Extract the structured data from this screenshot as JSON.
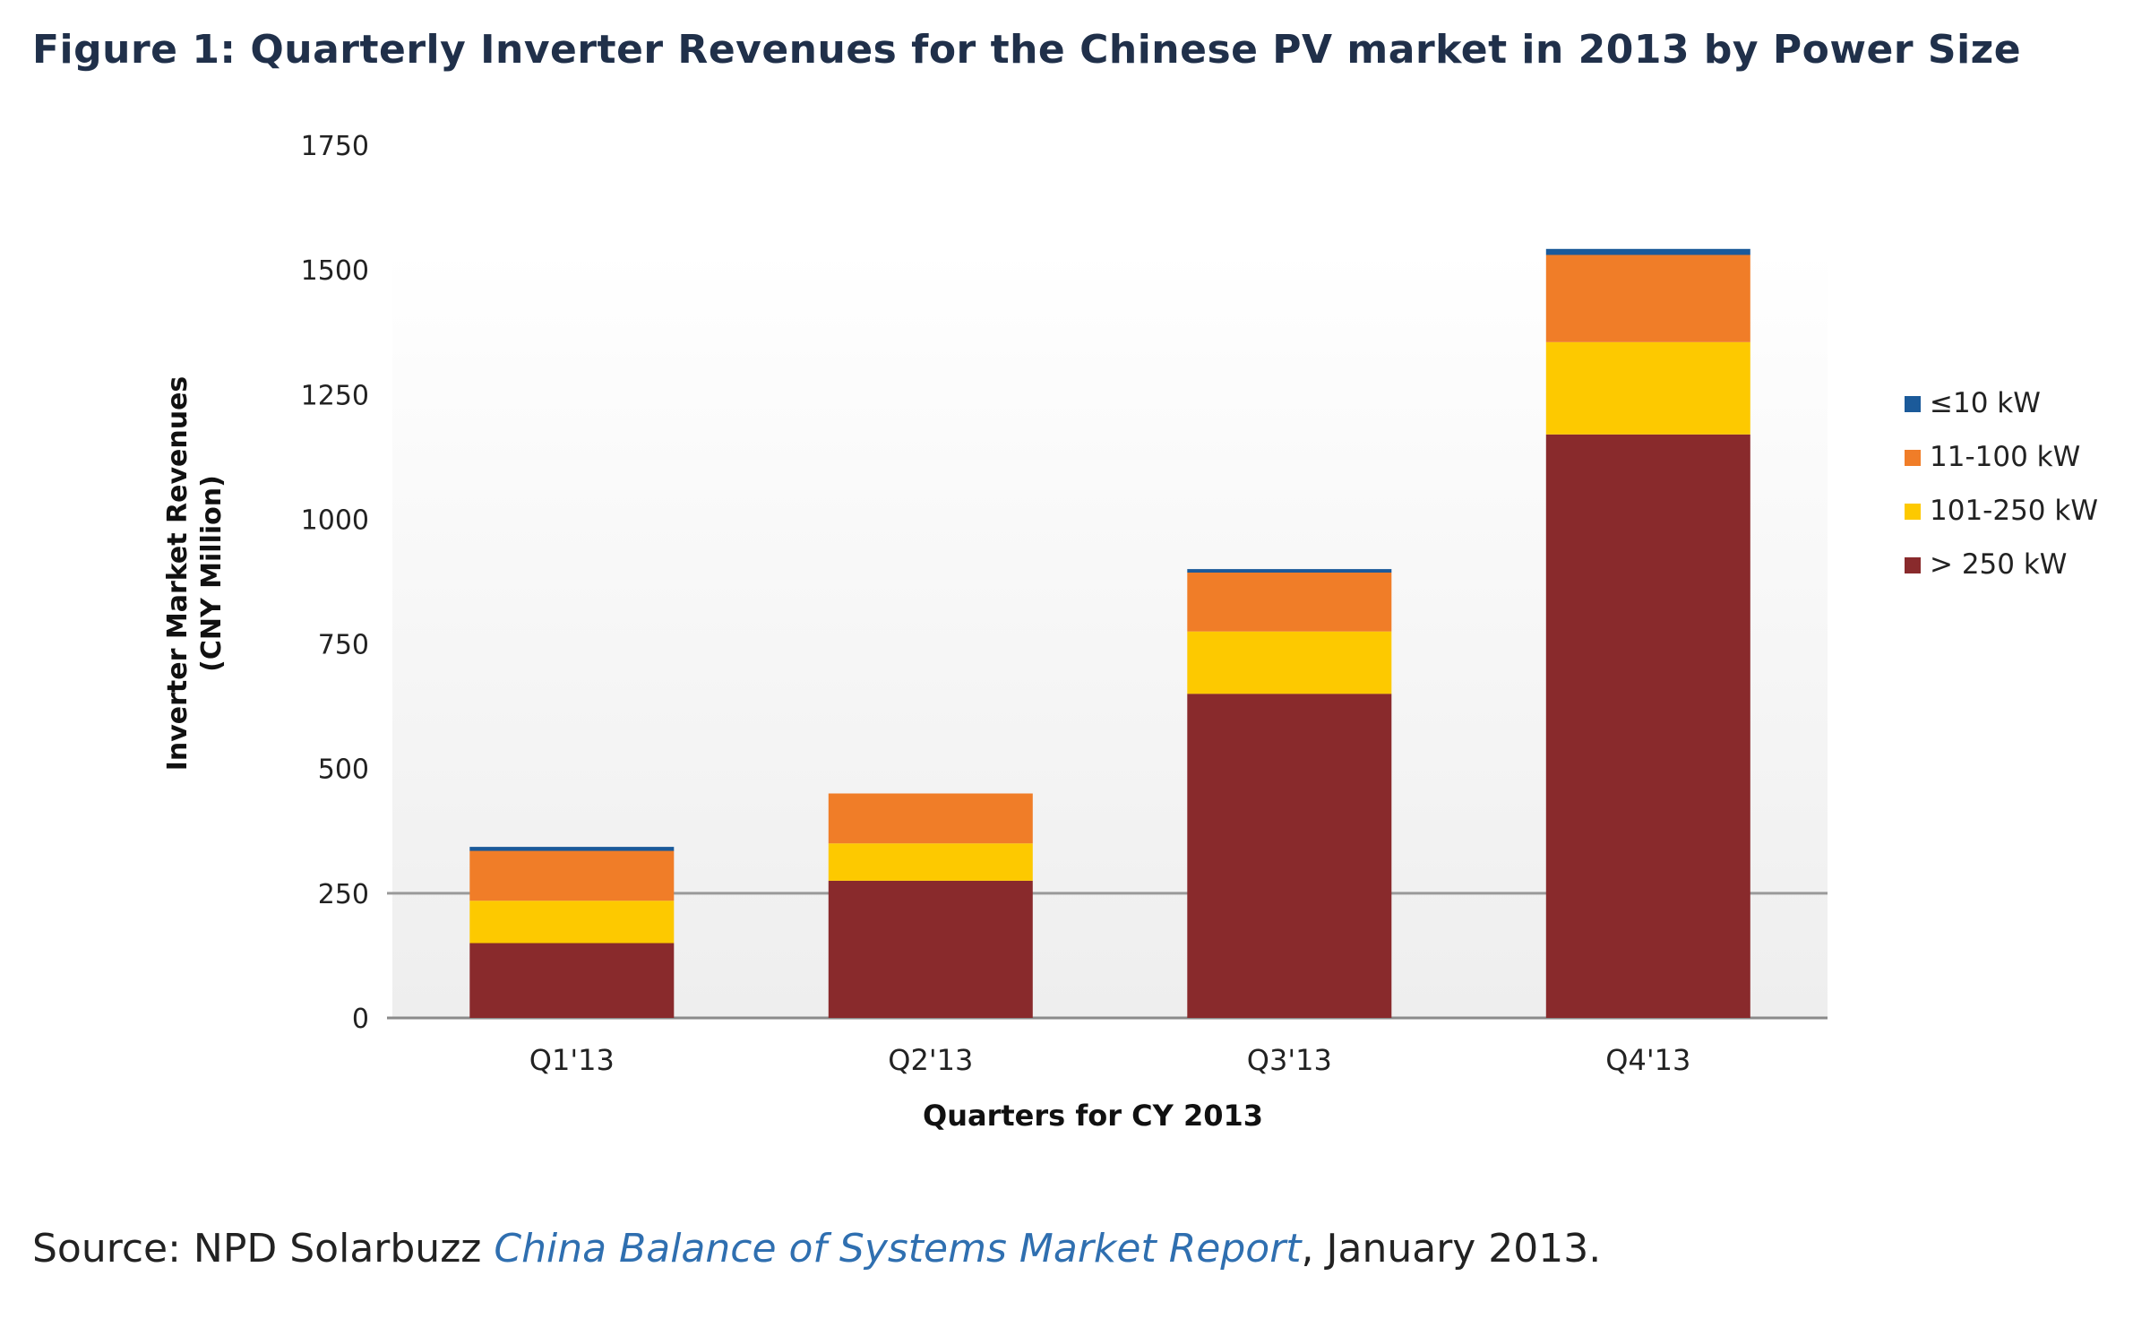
{
  "chart_data": {
    "type": "bar",
    "stacked": true,
    "title": "Figure 1: Quarterly Inverter Revenues for the Chinese PV market in 2013 by Power Size",
    "xlabel": "Quarters for CY 2013",
    "ylabel": "Inverter Market Revenues\n(CNY Million)",
    "ylim": [
      0,
      1750
    ],
    "yticks": [
      "0",
      "250",
      "500",
      "750",
      "1000",
      "1250",
      "1500",
      "1750"
    ],
    "categories": [
      "Q1'13",
      "Q2'13",
      "Q3'13",
      "Q4'13"
    ],
    "series": [
      {
        "name": "> 250 kW",
        "color": "#892a2c",
        "values": [
          150,
          275,
          650,
          1170
        ]
      },
      {
        "name": "101-250 kW",
        "color": "#fdc900",
        "values": [
          85,
          75,
          125,
          185
        ]
      },
      {
        "name": "11-100 kW",
        "color": "#f07d28",
        "values": [
          100,
          100,
          118,
          175
        ]
      },
      {
        "name": "≤10 kW",
        "color": "#1b5a9a",
        "values": [
          8,
          0,
          7,
          12
        ]
      }
    ],
    "legend_order": [
      "≤10 kW",
      "11-100 kW",
      "101-250 kW",
      "> 250 kW"
    ],
    "legend_position": "right",
    "grid": false,
    "reference_line": {
      "y": 250
    },
    "source": {
      "prefix": "Source: NPD Solarbuzz ",
      "report": "China Balance of Systems Market Report",
      "suffix": ", January 2013."
    }
  }
}
